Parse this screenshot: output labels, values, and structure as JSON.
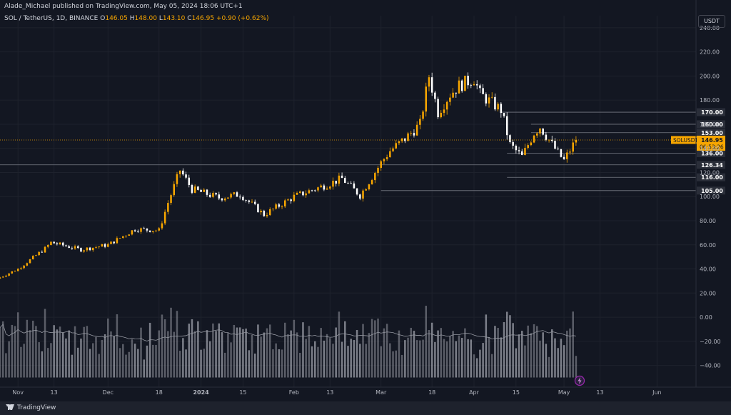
{
  "header": {
    "published": "Alade_Michael published on TradingView.com, May 05, 2024 18:06 UTC+1"
  },
  "legend": {
    "symbol": "SOL / TetherUS, 1D, BINANCE",
    "o_label": "O",
    "o": "146.05",
    "h_label": "H",
    "h": "148.00",
    "l_label": "L",
    "l": "143.10",
    "c_label": "C",
    "c": "146.95",
    "change": "+0.90 (+0.62%)"
  },
  "currency_button": "USDT",
  "footer": {
    "brand": "TradingView"
  },
  "colors": {
    "background": "#131722",
    "up": "#f7a600",
    "down": "#ffffff",
    "grid": "#1e222d",
    "level_line": "#787b86",
    "axis_text": "#b2b5be",
    "price_tag": "#f7a600"
  },
  "chart_data": {
    "type": "candlestick",
    "symbol_label": "SOLUSDT",
    "last_price": 146.95,
    "last_price_label": "146.95",
    "countdown": "06:53:26",
    "y_ticks": [
      240,
      220,
      200,
      180,
      160,
      140,
      120,
      100,
      80,
      60,
      40,
      20,
      0,
      -20,
      -40
    ],
    "y_tick_labels": [
      "240.00",
      "220.00",
      "200.00",
      "180.00",
      "160.00",
      "140.00",
      "120.00",
      "100.00",
      "80.00",
      "60.00",
      "40.00",
      "20.00",
      "0.00",
      "−20.00",
      "−40.00"
    ],
    "ylim": [
      -58,
      250
    ],
    "x_labels": [
      {
        "date": "2023-11-01",
        "label": "Nov"
      },
      {
        "date": "2023-11-13",
        "label": "13"
      },
      {
        "date": "2023-12-01",
        "label": "Dec"
      },
      {
        "date": "2023-12-18",
        "label": "18"
      },
      {
        "date": "2024-01-01",
        "label": "2024"
      },
      {
        "date": "2024-01-15",
        "label": "15"
      },
      {
        "date": "2024-02-01",
        "label": "Feb"
      },
      {
        "date": "2024-02-13",
        "label": "13"
      },
      {
        "date": "2024-03-01",
        "label": "Mar"
      },
      {
        "date": "2024-03-18",
        "label": "18"
      },
      {
        "date": "2024-04-01",
        "label": "Apr"
      },
      {
        "date": "2024-04-15",
        "label": "15"
      },
      {
        "date": "2024-05-01",
        "label": "May"
      },
      {
        "date": "2024-05-13",
        "label": "13"
      },
      {
        "date": "2024-06-01",
        "label": "Jun"
      }
    ],
    "xlim": [
      "2023-10-26",
      "2024-06-14"
    ],
    "levels": [
      {
        "price": 170.0,
        "label": "170.00",
        "from": "2024-04-10"
      },
      {
        "price": 160.0,
        "label": "160.00",
        "from": "2024-04-20"
      },
      {
        "price": 153.0,
        "label": "153.00",
        "from": "2024-04-20"
      },
      {
        "price": 136.0,
        "label": "136.00",
        "from": "2024-04-12"
      },
      {
        "price": 126.34,
        "label": "126.34",
        "from": "2023-10-26"
      },
      {
        "price": 116.0,
        "label": "116.00",
        "from": "2024-04-12"
      },
      {
        "price": 105.0,
        "label": "105.00",
        "from": "2024-03-01"
      }
    ],
    "anchors": [
      {
        "date": "2023-10-26",
        "close": 33
      },
      {
        "date": "2023-11-01",
        "close": 40
      },
      {
        "date": "2023-11-10",
        "close": 57
      },
      {
        "date": "2023-11-12",
        "close": 62
      },
      {
        "date": "2023-11-22",
        "close": 56
      },
      {
        "date": "2023-12-01",
        "close": 60
      },
      {
        "date": "2023-12-10",
        "close": 73
      },
      {
        "date": "2023-12-18",
        "close": 72
      },
      {
        "date": "2023-12-21",
        "close": 95
      },
      {
        "date": "2023-12-25",
        "close": 122
      },
      {
        "date": "2023-12-29",
        "close": 106
      },
      {
        "date": "2024-01-07",
        "close": 99
      },
      {
        "date": "2024-01-14",
        "close": 102
      },
      {
        "date": "2024-01-22",
        "close": 85
      },
      {
        "date": "2024-02-01",
        "close": 100
      },
      {
        "date": "2024-02-12",
        "close": 110
      },
      {
        "date": "2024-02-17",
        "close": 115
      },
      {
        "date": "2024-02-23",
        "close": 101
      },
      {
        "date": "2024-03-01",
        "close": 128
      },
      {
        "date": "2024-03-04",
        "close": 138
      },
      {
        "date": "2024-03-09",
        "close": 148
      },
      {
        "date": "2024-03-14",
        "close": 160
      },
      {
        "date": "2024-03-17",
        "close": 200
      },
      {
        "date": "2024-03-20",
        "close": 170
      },
      {
        "date": "2024-03-24",
        "close": 185
      },
      {
        "date": "2024-03-27",
        "close": 192
      },
      {
        "date": "2024-04-01",
        "close": 198
      },
      {
        "date": "2024-04-03",
        "close": 185
      },
      {
        "date": "2024-04-10",
        "close": 172
      },
      {
        "date": "2024-04-13",
        "close": 143
      },
      {
        "date": "2024-04-17",
        "close": 133
      },
      {
        "date": "2024-04-21",
        "close": 153
      },
      {
        "date": "2024-04-23",
        "close": 158
      },
      {
        "date": "2024-04-29",
        "close": 136
      },
      {
        "date": "2024-05-01",
        "close": 130
      },
      {
        "date": "2024-05-05",
        "close": 146.95
      }
    ],
    "volume_ma_shown": true
  }
}
